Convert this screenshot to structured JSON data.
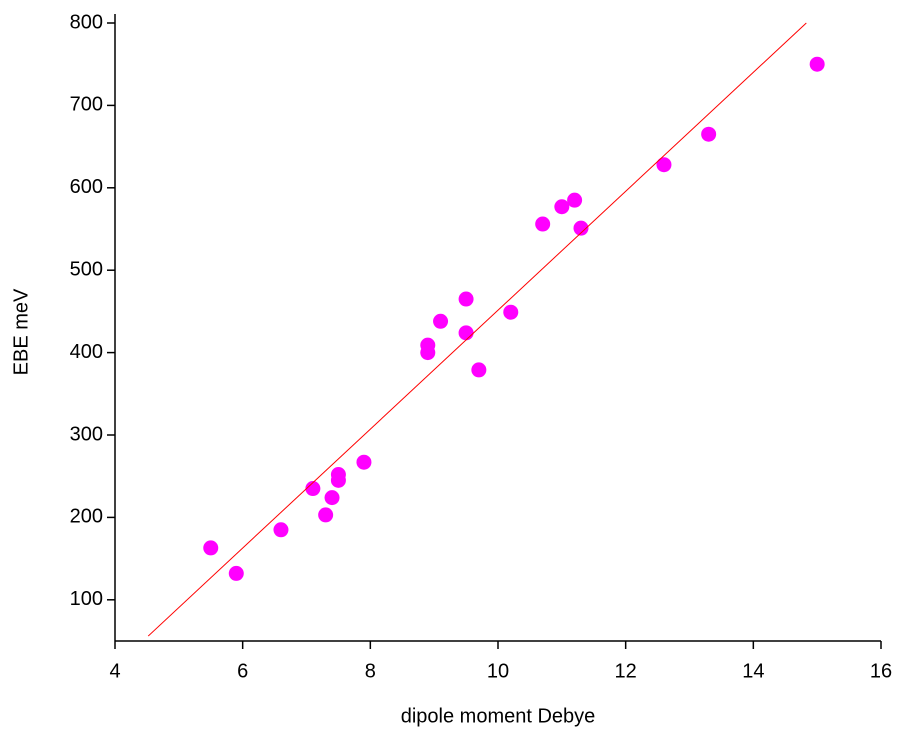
{
  "chart_data": {
    "type": "scatter",
    "x_label": "dipole moment  Debye",
    "y_label": "EBE meV",
    "xlim": [
      4,
      16
    ],
    "xticks": [
      4,
      6,
      8,
      10,
      12,
      14,
      16
    ],
    "ylim": [
      50,
      800
    ],
    "yticks": [
      100,
      200,
      300,
      400,
      500,
      600,
      700,
      800
    ],
    "series": [
      {
        "mode": "markers",
        "color": "#ff00ff",
        "x": [
          5.5,
          5.9,
          6.6,
          7.1,
          7.3,
          7.4,
          7.5,
          7.5,
          7.9,
          8.9,
          8.9,
          9.1,
          9.5,
          9.5,
          9.7,
          10.2,
          10.7,
          11.0,
          11.2,
          11.3,
          12.6,
          13.3,
          15.0
        ],
        "values": [
          163,
          132,
          185,
          235,
          203,
          224,
          252,
          245,
          267,
          409,
          400,
          438,
          465,
          424,
          379,
          449,
          556,
          577,
          585,
          551,
          628,
          665,
          750
        ]
      },
      {
        "mode": "line",
        "color": "#ff0000",
        "x": [
          4.52,
          14.83
        ],
        "values": [
          56,
          800
        ]
      }
    ]
  }
}
